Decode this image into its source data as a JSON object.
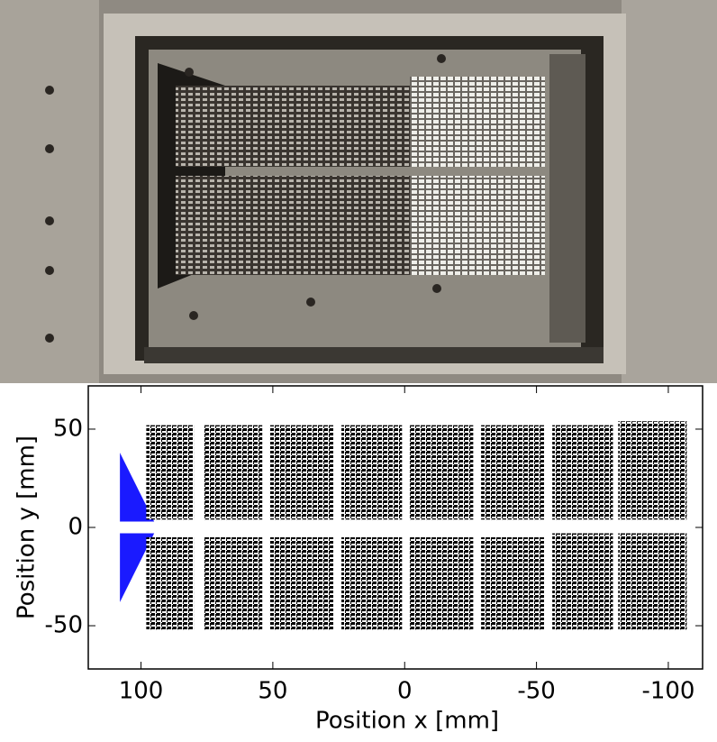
{
  "chart_data": {
    "type": "hitmap",
    "xlabel": "Position x [mm]",
    "ylabel": "Position y [mm]",
    "xlim": [
      120,
      -113
    ],
    "ylim": [
      -72,
      72
    ],
    "xticks": [
      100,
      50,
      0,
      -50,
      -100
    ],
    "yticks": [
      -50,
      0,
      50
    ],
    "regions": [
      {
        "shape": "wedge",
        "x": [
          108,
          95
        ],
        "y": [
          3,
          38
        ],
        "color": "#1a1aff"
      },
      {
        "shape": "wedge",
        "x": [
          108,
          95
        ],
        "y": [
          -3,
          -38
        ],
        "color": "#1a1aff"
      },
      {
        "shape": "block",
        "x": [
          98,
          80
        ],
        "y": [
          4,
          52
        ],
        "color": "#2b2bff"
      },
      {
        "shape": "block",
        "x": [
          98,
          80
        ],
        "y": [
          -52,
          -5
        ],
        "color": "#2b2bff"
      },
      {
        "shape": "block",
        "x": [
          76,
          54
        ],
        "y": [
          4,
          52
        ],
        "color": "#2b2bff"
      },
      {
        "shape": "block",
        "x": [
          76,
          54
        ],
        "y": [
          -52,
          -5
        ],
        "color": "#2b2bff"
      },
      {
        "shape": "block",
        "x": [
          51,
          27
        ],
        "y": [
          4,
          52
        ],
        "color": "#2b2bff"
      },
      {
        "shape": "block",
        "x": [
          51,
          27
        ],
        "y": [
          -52,
          -5
        ],
        "color": "#2b2bff"
      },
      {
        "shape": "block",
        "x": [
          24,
          1
        ],
        "y": [
          4,
          52
        ],
        "color": "#2222ff"
      },
      {
        "shape": "block",
        "x": [
          24,
          1
        ],
        "y": [
          -52,
          -5
        ],
        "color": "#2222ff"
      },
      {
        "shape": "block",
        "x": [
          -2,
          -26
        ],
        "y": [
          4,
          52
        ],
        "color": "#1a1aff"
      },
      {
        "shape": "block",
        "x": [
          -2,
          -26
        ],
        "y": [
          -52,
          -5
        ],
        "color": "#1a1aff"
      },
      {
        "shape": "block",
        "x": [
          -29,
          -53
        ],
        "y": [
          4,
          52
        ],
        "color": "#1010f0"
      },
      {
        "shape": "block",
        "x": [
          -29,
          -53
        ],
        "y": [
          -52,
          -5
        ],
        "color": "#1010f0"
      },
      {
        "shape": "block",
        "x": [
          -56,
          -79
        ],
        "y": [
          4,
          52
        ],
        "color": "#1040f0"
      },
      {
        "shape": "block",
        "x": [
          -56,
          -79
        ],
        "y": [
          -52,
          -3
        ],
        "color": "#1040f0"
      },
      {
        "shape": "block",
        "x": [
          -81,
          -107
        ],
        "y": [
          4,
          54
        ],
        "color": "#1a70ff"
      },
      {
        "shape": "block",
        "x": [
          -81,
          -107
        ],
        "y": [
          -52,
          -3
        ],
        "color": "#1a70ff"
      }
    ]
  }
}
